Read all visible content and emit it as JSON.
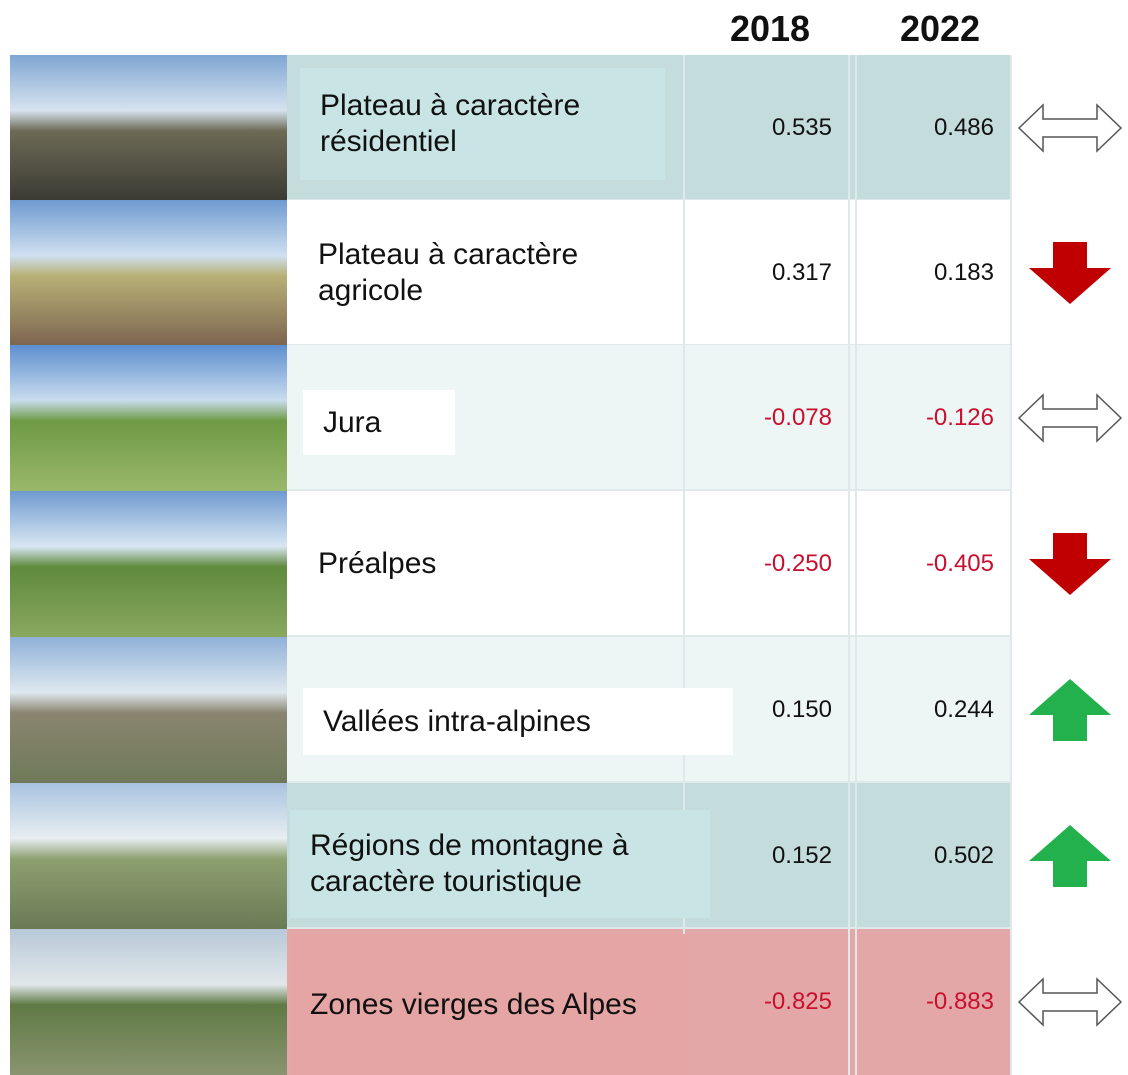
{
  "header": {
    "col1": "2018",
    "col2": "2022"
  },
  "rows": [
    {
      "label": "Plateau à caractère résidentiel",
      "v2018": "0.535",
      "v2022": "0.486"
    },
    {
      "label": "Plateau à caractère agricole",
      "v2018": "0.317",
      "v2022": "0.183"
    },
    {
      "label": "Jura",
      "v2018": "-0.078",
      "v2022": "-0.126"
    },
    {
      "label": "Préalpes",
      "v2018": "-0.250",
      "v2022": "-0.405"
    },
    {
      "label": "Vallées intra-alpines",
      "v2018": "0.150",
      "v2022": "0.244"
    },
    {
      "label": "Régions de montagne à caractère touristique",
      "v2018": "0.152",
      "v2022": "0.502"
    },
    {
      "label": "Zones vierges des Alpes",
      "v2018": "-0.825",
      "v2022": "-0.883"
    }
  ]
}
